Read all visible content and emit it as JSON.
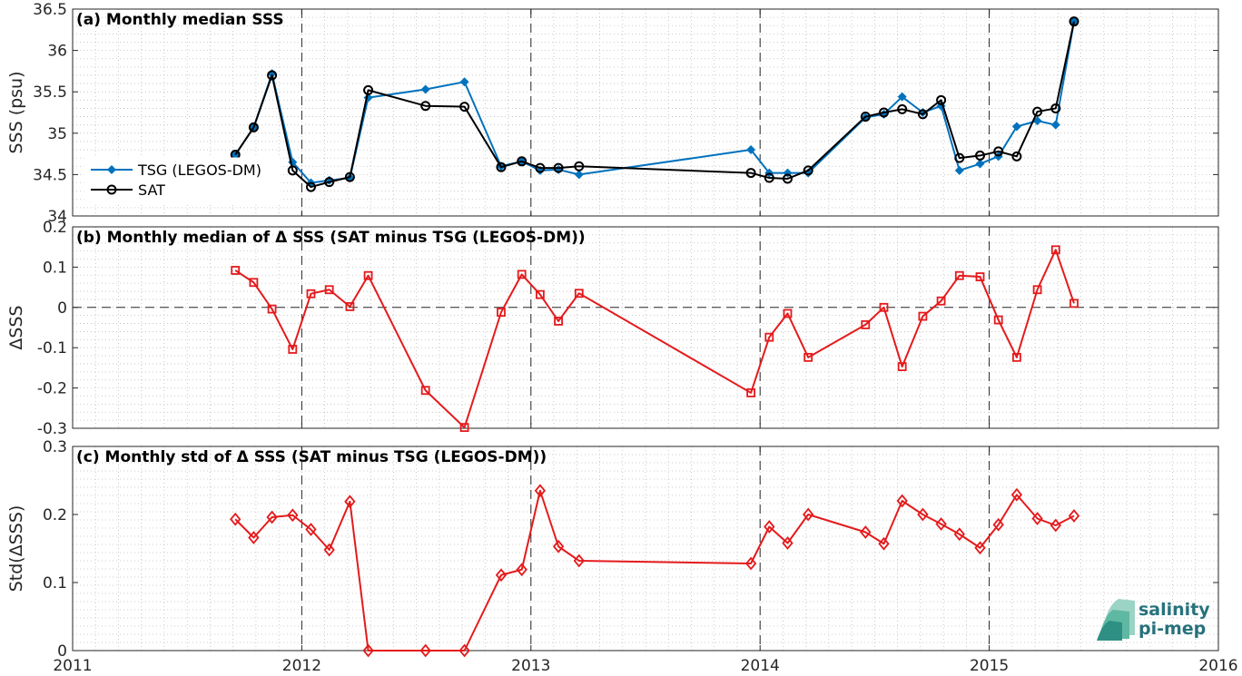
{
  "chart_data": [
    {
      "type": "line",
      "title": "(a) Monthly median SSS",
      "ylabel": "SSS (psu)",
      "xlim": [
        2011,
        2016
      ],
      "ylim": [
        34,
        36.5
      ],
      "yticks": [
        34,
        34.5,
        35,
        35.5,
        36,
        36.5
      ],
      "ytick_labels": [
        "34",
        "34.5",
        "35",
        "35.5",
        "36",
        "36.5"
      ],
      "grid": "minor dotted",
      "legend": "left",
      "series": [
        {
          "name": "TSG (LEGOS-DM)",
          "color": "#0072bd",
          "marker": "diamond",
          "x": [
            2011.71,
            2011.79,
            2011.87,
            2011.96,
            2012.04,
            2012.12,
            2012.21,
            2012.29,
            2012.54,
            2012.71,
            2012.87,
            2012.96,
            2013.04,
            2013.12,
            2013.21,
            2013.96,
            2014.04,
            2014.12,
            2014.21,
            2014.46,
            2014.54,
            2014.62,
            2014.71,
            2014.79,
            2014.87,
            2014.96,
            2015.04,
            2015.12,
            2015.21,
            2015.29,
            2015.37
          ],
          "values": [
            34.74,
            35.07,
            35.72,
            34.65,
            34.4,
            34.43,
            34.46,
            35.43,
            35.53,
            35.62,
            34.6,
            34.66,
            34.55,
            34.56,
            34.5,
            34.8,
            34.52,
            34.52,
            34.52,
            35.19,
            35.23,
            35.44,
            35.25,
            35.33,
            34.55,
            34.63,
            34.72,
            35.08,
            35.15,
            35.1,
            36.35
          ]
        },
        {
          "name": "SAT",
          "color": "#000000",
          "marker": "circle",
          "x": [
            2011.71,
            2011.79,
            2011.87,
            2011.96,
            2012.04,
            2012.12,
            2012.21,
            2012.29,
            2012.54,
            2012.71,
            2012.87,
            2012.96,
            2013.04,
            2013.12,
            2013.21,
            2013.96,
            2014.04,
            2014.12,
            2014.21,
            2014.46,
            2014.54,
            2014.62,
            2014.71,
            2014.79,
            2014.87,
            2014.96,
            2015.04,
            2015.12,
            2015.21,
            2015.29,
            2015.37
          ],
          "values": [
            34.74,
            35.07,
            35.7,
            34.55,
            34.35,
            34.41,
            34.47,
            35.52,
            35.33,
            35.32,
            34.59,
            34.66,
            34.58,
            34.58,
            34.6,
            34.52,
            34.46,
            34.45,
            34.55,
            35.2,
            35.25,
            35.29,
            35.23,
            35.4,
            34.7,
            34.73,
            34.78,
            34.72,
            35.26,
            35.3,
            36.35
          ]
        }
      ]
    },
    {
      "type": "line",
      "title": "(b) Monthly median of Δ SSS (SAT minus TSG (LEGOS-DM))",
      "ylabel": "ΔSSS",
      "xlim": [
        2011,
        2016
      ],
      "ylim": [
        -0.3,
        0.2
      ],
      "yticks": [
        -0.3,
        -0.2,
        -0.1,
        0,
        0.1,
        0.2
      ],
      "ytick_labels": [
        "-0.3",
        "-0.2",
        "-0.1",
        "0",
        "0.1",
        "0.2"
      ],
      "grid": "minor dotted",
      "series": [
        {
          "color": "#e41a1c",
          "marker": "square",
          "x": [
            2011.71,
            2011.79,
            2011.87,
            2011.96,
            2012.04,
            2012.12,
            2012.21,
            2012.29,
            2012.54,
            2012.71,
            2012.87,
            2012.96,
            2013.04,
            2013.12,
            2013.21,
            2013.96,
            2014.04,
            2014.12,
            2014.21,
            2014.46,
            2014.54,
            2014.62,
            2014.71,
            2014.79,
            2014.87,
            2014.96,
            2015.04,
            2015.12,
            2015.21,
            2015.29,
            2015.37
          ],
          "values": [
            0.092,
            0.062,
            -0.004,
            -0.104,
            0.034,
            0.044,
            0.002,
            0.079,
            -0.206,
            -0.298,
            -0.012,
            0.082,
            0.032,
            -0.034,
            0.035,
            -0.212,
            -0.074,
            -0.015,
            -0.124,
            -0.043,
            0.0,
            -0.147,
            -0.022,
            0.016,
            0.079,
            0.076,
            -0.031,
            -0.124,
            0.044,
            0.143,
            0.01
          ]
        }
      ]
    },
    {
      "type": "line",
      "title": "(c) Monthly std of Δ SSS (SAT minus TSG (LEGOS-DM))",
      "ylabel": "Std(ΔSSS)",
      "xlabel": "",
      "xlim": [
        2011,
        2016
      ],
      "ylim": [
        0,
        0.3
      ],
      "yticks": [
        0,
        0.1,
        0.2,
        0.3
      ],
      "ytick_labels": [
        "0",
        "0.1",
        "0.2",
        "0.3"
      ],
      "xticks": [
        2011,
        2012,
        2013,
        2014,
        2015,
        2016
      ],
      "xtick_labels": [
        "2011",
        "2012",
        "2013",
        "2014",
        "2015",
        "2016"
      ],
      "grid": "minor dotted",
      "series": [
        {
          "color": "#e41a1c",
          "marker": "diamond",
          "x": [
            2011.71,
            2011.79,
            2011.87,
            2011.96,
            2012.04,
            2012.12,
            2012.21,
            2012.29,
            2012.54,
            2012.71,
            2012.87,
            2012.96,
            2013.04,
            2013.12,
            2013.21,
            2013.96,
            2014.04,
            2014.12,
            2014.21,
            2014.46,
            2014.54,
            2014.62,
            2014.71,
            2014.79,
            2014.87,
            2014.96,
            2015.04,
            2015.12,
            2015.21,
            2015.29,
            2015.37
          ],
          "values": [
            0.193,
            0.166,
            0.196,
            0.199,
            0.178,
            0.148,
            0.219,
            0.0,
            0.0,
            0.0,
            0.111,
            0.119,
            0.235,
            0.153,
            0.132,
            0.128,
            0.182,
            0.158,
            0.2,
            0.174,
            0.157,
            0.22,
            0.2,
            0.186,
            0.171,
            0.151,
            0.185,
            0.229,
            0.194,
            0.184,
            0.198
          ]
        }
      ]
    }
  ],
  "legend": {
    "entries": [
      "TSG (LEGOS-DM)",
      "SAT"
    ]
  },
  "logo": {
    "line1": "salinity",
    "line2": "pi-mep"
  }
}
